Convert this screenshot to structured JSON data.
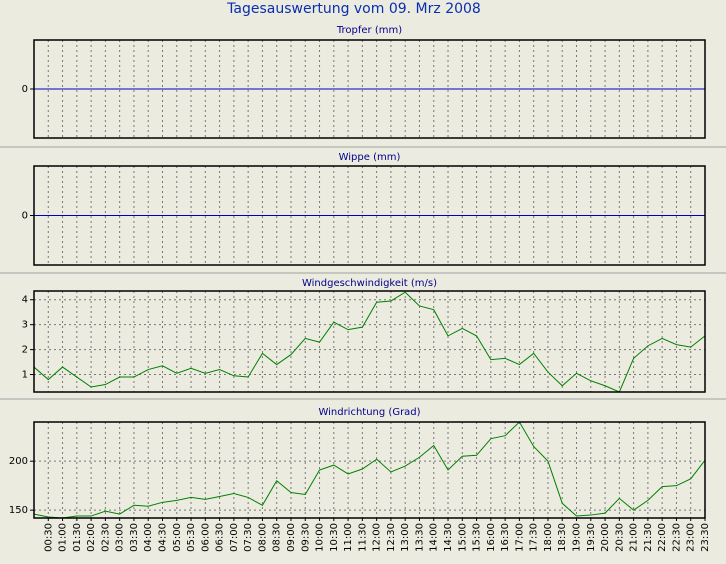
{
  "title": "Tagesauswertung vom 09. Mrz 2008",
  "time_axis": [
    null,
    "00:30",
    "01:00",
    "01:30",
    "02:00",
    "02:30",
    "03:00",
    "03:30",
    "04:00",
    "04:30",
    "05:00",
    "05:30",
    "06:00",
    "06:30",
    "07:00",
    "07:30",
    "08:00",
    "08:30",
    "09:00",
    "09:30",
    "10:00",
    "10:30",
    "11:00",
    "11:30",
    "12:00",
    "12:30",
    "13:00",
    "13:30",
    "14:00",
    "14:30",
    "15:00",
    "15:30",
    "16:00",
    "16:30",
    "17:00",
    "17:30",
    "18:00",
    "18:30",
    "19:00",
    "19:30",
    "20:00",
    "20:30",
    "21:00",
    "21:30",
    "22:00",
    "22:30",
    "23:00",
    "23:30"
  ],
  "chart_data": [
    {
      "type": "line",
      "title": "Tropfer (mm)",
      "ylim": [
        -1,
        1
      ],
      "yticks": [
        0
      ],
      "baseline_color": "#0000c0",
      "series": []
    },
    {
      "type": "line",
      "title": "Wippe (mm)",
      "ylim": [
        -1,
        1
      ],
      "yticks": [
        0
      ],
      "baseline_color": "#0000c0",
      "series": []
    },
    {
      "type": "line",
      "title": "Windgeschwindigkeit (m/s)",
      "ylim": [
        0.3,
        4.35
      ],
      "yticks": [
        1,
        2,
        3,
        4
      ],
      "grid": true,
      "series": [
        {
          "color": "#008000",
          "values": [
            1.3,
            0.8,
            1.3,
            0.9,
            0.5,
            0.6,
            0.9,
            0.9,
            1.2,
            1.35,
            1.05,
            1.25,
            1.05,
            1.2,
            0.95,
            0.9,
            1.85,
            1.4,
            1.8,
            2.45,
            2.3,
            3.1,
            2.8,
            2.9,
            3.9,
            3.95,
            4.3,
            3.75,
            3.6,
            2.55,
            2.85,
            2.55,
            1.6,
            1.65,
            1.4,
            1.85,
            1.1,
            0.55,
            1.05,
            0.75,
            0.55,
            0.3,
            1.65,
            2.15,
            2.45,
            2.2,
            2.1,
            2.55
          ]
        }
      ]
    },
    {
      "type": "line",
      "title": "Windrichtung (Grad)",
      "ylim": [
        142,
        240
      ],
      "yticks": [
        150,
        200
      ],
      "grid": true,
      "series": [
        {
          "color": "#008000",
          "values": [
            146,
            143,
            142,
            144,
            144,
            149,
            146,
            155,
            154,
            158,
            160,
            163,
            161,
            164,
            167,
            163,
            155,
            180,
            168,
            166,
            191,
            196,
            187,
            192,
            202,
            189,
            195,
            204,
            216,
            191,
            205,
            206,
            223,
            226,
            240,
            215,
            200,
            157,
            144,
            145,
            147,
            162,
            150,
            160,
            174,
            175,
            182,
            201
          ]
        }
      ]
    }
  ]
}
